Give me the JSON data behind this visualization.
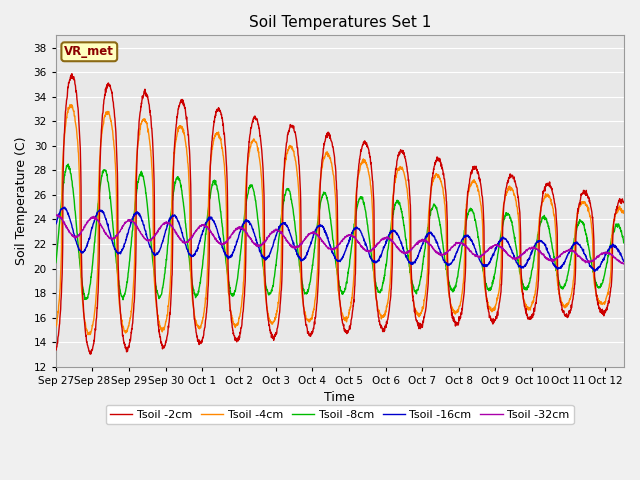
{
  "title": "Soil Temperatures Set 1",
  "xlabel": "Time",
  "ylabel": "Soil Temperature (C)",
  "ylim": [
    12,
    39
  ],
  "yticks": [
    12,
    14,
    16,
    18,
    20,
    22,
    24,
    26,
    28,
    30,
    32,
    34,
    36,
    38
  ],
  "fig_bg": "#f0f0f0",
  "plot_bg": "#e8e8e8",
  "line_colors": {
    "Tsoil -2cm": "#cc0000",
    "Tsoil -4cm": "#ff8800",
    "Tsoil -8cm": "#00bb00",
    "Tsoil -16cm": "#0000cc",
    "Tsoil -32cm": "#aa00aa"
  },
  "legend_label": "VR_met",
  "x_tick_labels": [
    "Sep 27",
    "Sep 28",
    "Sep 29",
    "Sep 30",
    "Oct 1",
    "Oct 2",
    "Oct 3",
    "Oct 4",
    "Oct 5",
    "Oct 6",
    "Oct 7",
    "Oct 8",
    "Oct 9",
    "Oct 10",
    "Oct 11",
    "Oct 12"
  ],
  "n_days": 15.5,
  "pts_per_day": 144
}
